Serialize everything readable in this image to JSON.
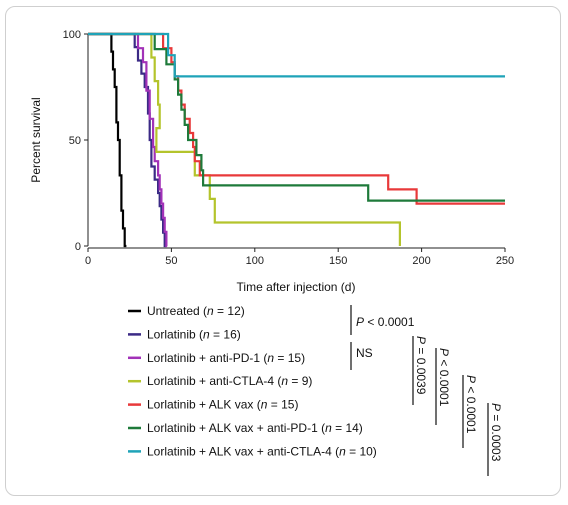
{
  "chart_data": {
    "type": "line",
    "subtype": "kaplan-meier",
    "xlabel": "Time after injection (d)",
    "ylabel": "Percent survival",
    "xlim": [
      0,
      250
    ],
    "ylim": [
      0,
      100
    ],
    "xticks": [
      0,
      50,
      100,
      150,
      200,
      250
    ],
    "yticks": [
      0,
      50,
      100
    ],
    "grid": false,
    "legend_position": "bottom-left",
    "series": [
      {
        "name": "Untreated",
        "n": "12",
        "color": "#000000",
        "steps": [
          [
            0,
            100
          ],
          [
            14,
            100
          ],
          [
            14,
            91.7
          ],
          [
            15,
            91.7
          ],
          [
            15,
            83.3
          ],
          [
            16,
            83.3
          ],
          [
            16,
            75
          ],
          [
            17,
            75
          ],
          [
            17,
            58.3
          ],
          [
            18,
            58.3
          ],
          [
            18,
            50
          ],
          [
            19,
            50
          ],
          [
            19,
            33.3
          ],
          [
            20,
            33.3
          ],
          [
            20,
            16.7
          ],
          [
            21,
            16.7
          ],
          [
            21,
            8.3
          ],
          [
            22,
            8.3
          ],
          [
            22,
            0
          ],
          [
            23,
            0
          ]
        ]
      },
      {
        "name": "Lorlatinib",
        "n": "16",
        "color": "#3b2a86",
        "steps": [
          [
            0,
            100
          ],
          [
            28,
            100
          ],
          [
            28,
            93.8
          ],
          [
            30,
            93.8
          ],
          [
            30,
            87.5
          ],
          [
            32,
            87.5
          ],
          [
            32,
            81.3
          ],
          [
            34,
            81.3
          ],
          [
            34,
            75
          ],
          [
            36,
            75
          ],
          [
            36,
            62.5
          ],
          [
            37,
            62.5
          ],
          [
            37,
            50
          ],
          [
            38,
            50
          ],
          [
            38,
            37.5
          ],
          [
            40,
            37.5
          ],
          [
            40,
            31.3
          ],
          [
            42,
            31.3
          ],
          [
            42,
            25
          ],
          [
            43,
            25
          ],
          [
            43,
            18.8
          ],
          [
            44,
            18.8
          ],
          [
            44,
            12.5
          ],
          [
            45,
            12.5
          ],
          [
            45,
            6.3
          ],
          [
            46,
            6.3
          ],
          [
            46,
            0
          ],
          [
            46.5,
            0
          ]
        ]
      },
      {
        "name": "Lorlatinib + anti-PD-1",
        "n": "15",
        "color": "#a232b8",
        "steps": [
          [
            0,
            100
          ],
          [
            30,
            100
          ],
          [
            30,
            93.3
          ],
          [
            33,
            93.3
          ],
          [
            33,
            86.7
          ],
          [
            35,
            86.7
          ],
          [
            35,
            73.3
          ],
          [
            37,
            73.3
          ],
          [
            37,
            60
          ],
          [
            39,
            60
          ],
          [
            39,
            46.7
          ],
          [
            40,
            46.7
          ],
          [
            40,
            40
          ],
          [
            42,
            40
          ],
          [
            42,
            33.3
          ],
          [
            43,
            33.3
          ],
          [
            43,
            26.7
          ],
          [
            44,
            26.7
          ],
          [
            44,
            20
          ],
          [
            45,
            20
          ],
          [
            45,
            13.3
          ],
          [
            46,
            13.3
          ],
          [
            46,
            6.7
          ],
          [
            47,
            6.7
          ],
          [
            47,
            0
          ],
          [
            47.5,
            0
          ]
        ]
      },
      {
        "name": "Lorlatinib + anti-CTLA-4",
        "n": "9",
        "color": "#b4c42c",
        "steps": [
          [
            0,
            100
          ],
          [
            38,
            100
          ],
          [
            38,
            88.9
          ],
          [
            40,
            88.9
          ],
          [
            40,
            77.8
          ],
          [
            42,
            77.8
          ],
          [
            42,
            66.7
          ],
          [
            43,
            66.7
          ],
          [
            43,
            55.6
          ],
          [
            41,
            55.6
          ],
          [
            41,
            55.6
          ],
          [
            41,
            44.4
          ],
          [
            64,
            44.4
          ],
          [
            64,
            33.3
          ],
          [
            73,
            33.3
          ],
          [
            73,
            22.2
          ],
          [
            76,
            22.2
          ],
          [
            76,
            11.1
          ],
          [
            187,
            11.1
          ],
          [
            187,
            0
          ]
        ]
      },
      {
        "name": "Lorlatinib + ALK vax",
        "n": "15",
        "color": "#e8393a",
        "steps": [
          [
            0,
            100
          ],
          [
            45,
            100
          ],
          [
            45,
            93.3
          ],
          [
            50,
            93.3
          ],
          [
            50,
            86.7
          ],
          [
            52,
            86.7
          ],
          [
            52,
            80
          ],
          [
            54,
            80
          ],
          [
            54,
            73.3
          ],
          [
            56,
            73.3
          ],
          [
            56,
            66.7
          ],
          [
            58,
            66.7
          ],
          [
            58,
            60
          ],
          [
            61,
            60
          ],
          [
            61,
            53.3
          ],
          [
            63,
            53.3
          ],
          [
            63,
            46.7
          ],
          [
            64,
            46.7
          ],
          [
            64,
            40
          ],
          [
            67,
            40
          ],
          [
            67,
            33.3
          ],
          [
            180,
            33.3
          ],
          [
            180,
            26.7
          ],
          [
            197,
            26.7
          ],
          [
            197,
            20
          ],
          [
            250,
            20
          ]
        ]
      },
      {
        "name": "Lorlatinib + ALK vax + anti-PD-1",
        "n": "14",
        "color": "#1e7a3a",
        "steps": [
          [
            0,
            100
          ],
          [
            40,
            100
          ],
          [
            40,
            92.9
          ],
          [
            47,
            92.9
          ],
          [
            47,
            85.7
          ],
          [
            52,
            85.7
          ],
          [
            52,
            78.6
          ],
          [
            54,
            78.6
          ],
          [
            54,
            71.4
          ],
          [
            56,
            71.4
          ],
          [
            56,
            64.3
          ],
          [
            58,
            64.3
          ],
          [
            58,
            57.1
          ],
          [
            60,
            57.1
          ],
          [
            60,
            50
          ],
          [
            65,
            50
          ],
          [
            65,
            42.9
          ],
          [
            68,
            42.9
          ],
          [
            68,
            35.7
          ],
          [
            69,
            35.7
          ],
          [
            69,
            28.6
          ],
          [
            168,
            28.6
          ],
          [
            168,
            21.4
          ],
          [
            250,
            21.4
          ]
        ]
      },
      {
        "name": "Lorlatinib + ALK vax + anti-CTLA-4",
        "n": "10",
        "color": "#1fa3b8",
        "steps": [
          [
            0,
            100
          ],
          [
            48,
            100
          ],
          [
            48,
            90
          ],
          [
            52,
            90
          ],
          [
            52,
            80
          ],
          [
            250,
            80
          ]
        ]
      }
    ],
    "comparisons": [
      {
        "label": "P < 0.0001"
      },
      {
        "label": "NS"
      },
      {
        "label": "P = 0.0039"
      },
      {
        "label": "P < 0.0001"
      },
      {
        "label": "P < 0.0001"
      },
      {
        "label": "P = 0.0003"
      }
    ]
  }
}
